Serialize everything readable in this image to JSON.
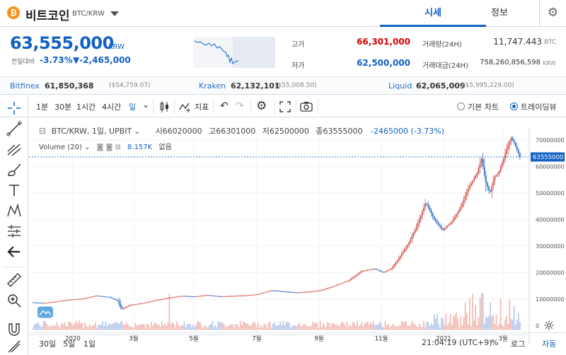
{
  "header": {
    "coin_symbol": "₿",
    "coin_name": "비트코인",
    "pair": "BTC/KRW",
    "tabs": [
      {
        "label": "시세",
        "active": true
      },
      {
        "label": "정보",
        "active": false
      }
    ]
  },
  "price": {
    "current": "63,555,000",
    "unit": "KRW",
    "change_label": "전일대비",
    "change_rate": "-3.73%",
    "change_amount": "▼-2,465,000",
    "high_label": "고가",
    "high": "66,301,000",
    "low_label": "저가",
    "low": "62,500,000",
    "volume_label": "거래량(24H)",
    "volume": "11,747.443",
    "volume_unit": "BTC",
    "value_label": "거래대금(24H)",
    "value": "758,260,856,598",
    "value_unit": "KRW"
  },
  "exchanges": [
    {
      "name": "Bitfinex",
      "price": "61,850,368",
      "usd": "($54,759.07)"
    },
    {
      "name": "Kraken",
      "price": "62,132,101",
      "usd": "($55,008.50)"
    },
    {
      "name": "Liquid",
      "price": "62,065,009",
      "usd": "($5,995,229.00)"
    }
  ],
  "toolbar": {
    "intervals": [
      "1분",
      "30분",
      "1시간",
      "4시간",
      "일"
    ],
    "indicator_label": "지표",
    "basic_chart": "기본 차트",
    "tradingview": "트레이딩뷰"
  },
  "legend": {
    "symbol": "BTC/KRW, 1일, UPBIT",
    "open": "시66020000",
    "high": "고66301000",
    "low": "저62500000",
    "close": "종63555000",
    "change": "-2465000 (-3.73%)",
    "volume_label": "Volume (20)",
    "volume_value": "8.157K",
    "volume_ma": "없음"
  },
  "chart_data": {
    "type": "candlestick",
    "price_axis_ticks": [
      "70000000",
      "60000000",
      "50000000",
      "40000000",
      "30000000",
      "20000000",
      "10000000",
      "0"
    ],
    "price_axis_values": [
      70000000,
      60000000,
      50000000,
      40000000,
      30000000,
      20000000,
      10000000,
      0
    ],
    "ylim": [
      0,
      73000000
    ],
    "last_price_label": "63555000",
    "last_price": 63555000,
    "time_ticks": [
      "2020",
      "3월",
      "5월",
      "7월",
      "9월",
      "11월",
      "2021",
      "3월"
    ],
    "series": [
      {
        "name": "price",
        "points": [
          [
            0,
            8800000
          ],
          [
            3,
            8500000
          ],
          [
            6,
            9200000
          ],
          [
            9,
            9800000
          ],
          [
            12,
            10200000
          ],
          [
            15,
            11300000
          ],
          [
            18,
            10800000
          ],
          [
            20,
            9500000
          ],
          [
            21,
            6300000
          ],
          [
            23,
            7800000
          ],
          [
            26,
            8500000
          ],
          [
            29,
            9600000
          ],
          [
            32,
            10500000
          ],
          [
            35,
            11200000
          ],
          [
            38,
            11000000
          ],
          [
            41,
            11500000
          ],
          [
            44,
            11000000
          ],
          [
            47,
            11200000
          ],
          [
            50,
            11400000
          ],
          [
            53,
            11900000
          ],
          [
            56,
            13300000
          ],
          [
            59,
            12800000
          ],
          [
            62,
            12500000
          ],
          [
            65,
            12800000
          ],
          [
            68,
            13500000
          ],
          [
            71,
            15200000
          ],
          [
            74,
            17000000
          ],
          [
            77,
            20500000
          ],
          [
            80,
            21500000
          ],
          [
            82,
            20000000
          ],
          [
            84,
            21500000
          ],
          [
            86,
            26000000
          ],
          [
            88,
            31000000
          ],
          [
            90,
            38000000
          ],
          [
            92,
            46500000
          ],
          [
            94,
            40000000
          ],
          [
            96,
            36000000
          ],
          [
            98,
            39000000
          ],
          [
            100,
            44000000
          ],
          [
            102,
            52000000
          ],
          [
            104,
            57500000
          ],
          [
            105,
            63000000
          ],
          [
            106,
            54000000
          ],
          [
            107,
            50000000
          ],
          [
            108,
            56000000
          ],
          [
            109,
            57500000
          ],
          [
            110,
            62000000
          ],
          [
            111,
            67000000
          ],
          [
            112,
            71000000
          ],
          [
            113,
            67500000
          ],
          [
            114,
            63555000
          ]
        ]
      }
    ]
  },
  "bottom": {
    "ranges": [
      "30일",
      "5일",
      "1일"
    ],
    "time": "21:04:19 (UTC+9)",
    "percent": "%",
    "log": "로그",
    "auto": "자동"
  }
}
